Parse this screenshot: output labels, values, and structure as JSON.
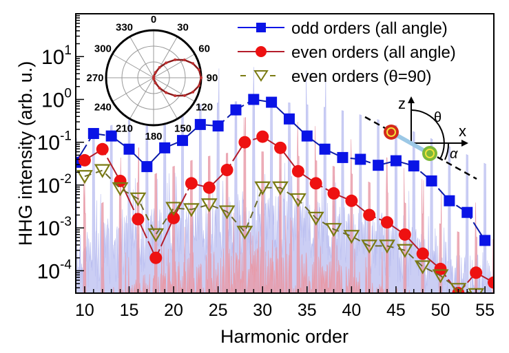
{
  "chart_data": [
    {
      "type": "line",
      "xlabel": "Harmonic order",
      "ylabel": "HHG intensity (arb. u.)",
      "xlim": [
        9,
        56
      ],
      "ylim": [
        3e-05,
        100
      ],
      "yscale": "log",
      "xticks": [
        "10",
        "15",
        "20",
        "25",
        "30",
        "35",
        "40",
        "45",
        "50",
        "55"
      ],
      "yticks": [
        {
          "base": "10",
          "exp": "1"
        },
        {
          "base": "10",
          "exp": "0"
        },
        {
          "base": "10",
          "exp": "-1"
        },
        {
          "base": "10",
          "exp": "-2"
        },
        {
          "base": "10",
          "exp": "-3"
        },
        {
          "base": "10",
          "exp": "-4"
        }
      ],
      "legend_position": "top-right",
      "series": [
        {
          "name": "odd orders (all angle)",
          "color": "#0a14e6",
          "marker": "square",
          "line": "solid",
          "x": [
            9,
            11,
            13,
            15,
            17,
            19,
            21,
            23,
            25,
            27,
            29,
            31,
            33,
            35,
            37,
            39,
            41,
            43,
            45,
            47,
            49,
            51,
            53,
            55
          ],
          "y": [
            0.034,
            0.16,
            0.14,
            0.069,
            0.027,
            0.074,
            0.11,
            0.26,
            0.24,
            0.57,
            1.0,
            0.86,
            0.35,
            0.14,
            0.069,
            0.044,
            0.04,
            0.029,
            0.037,
            0.028,
            0.0125,
            0.0043,
            0.0023,
            0.00051
          ]
        },
        {
          "name": "even orders (all angle)",
          "color": "#ee1111",
          "marker": "circle",
          "line": "solid",
          "x": [
            10,
            12,
            14,
            16,
            18,
            20,
            22,
            24,
            26,
            28,
            30,
            32,
            34,
            36,
            38,
            40,
            42,
            44,
            46,
            48,
            50,
            52,
            54,
            56
          ],
          "y": [
            0.038,
            0.069,
            0.0125,
            0.0016,
            0.0002,
            0.0017,
            0.011,
            0.0087,
            0.0225,
            0.1,
            0.135,
            0.074,
            0.021,
            0.011,
            0.0064,
            0.0043,
            0.002,
            0.00135,
            0.0007,
            0.00025,
            0.00011,
            3e-05,
            9e-05,
            5.3e-05
          ]
        },
        {
          "name": "even orders (θ=90)",
          "color": "#7a7a12",
          "marker": "triangle-down-open",
          "line": "dashed",
          "x": [
            10,
            12,
            14,
            16,
            18,
            20,
            22,
            24,
            26,
            28,
            30,
            32,
            34,
            36,
            38,
            40,
            42,
            44,
            46,
            48,
            50,
            52,
            54
          ],
          "y": [
            0.016,
            0.022,
            0.0083,
            0.0048,
            0.0007,
            0.0029,
            0.0027,
            0.0035,
            0.0024,
            0.0008,
            0.0087,
            0.0087,
            0.0046,
            0.0017,
            0.00093,
            0.00064,
            0.00038,
            0.00038,
            0.0003,
            0.000125,
            7.7e-05,
            3.7e-05,
            2.8e-05
          ]
        }
      ],
      "background_spectra": {
        "colors": [
          "#b9bdf0",
          "#e89aa8"
        ]
      }
    },
    {
      "type": "polar",
      "angle_ticks": [
        "0",
        "30",
        "60",
        "90",
        "120",
        "150",
        "180",
        "210",
        "240",
        "270",
        "300",
        "330"
      ],
      "curve_color": "#8b1a1a",
      "theta": [
        0,
        10,
        20,
        30,
        40,
        50,
        60,
        70,
        80,
        90,
        100,
        110,
        120,
        130,
        140,
        150,
        160,
        170,
        180
      ],
      "r": [
        0,
        0.03,
        0.12,
        0.25,
        0.41,
        0.59,
        0.75,
        0.88,
        0.97,
        1.0,
        0.97,
        0.88,
        0.75,
        0.59,
        0.41,
        0.25,
        0.12,
        0.03,
        0
      ]
    }
  ],
  "diagram": {
    "axis_z": "z",
    "axis_x": "x",
    "angle_theta": "θ",
    "angle_alpha": "α",
    "atom_o": "O",
    "atom_c": "C"
  }
}
